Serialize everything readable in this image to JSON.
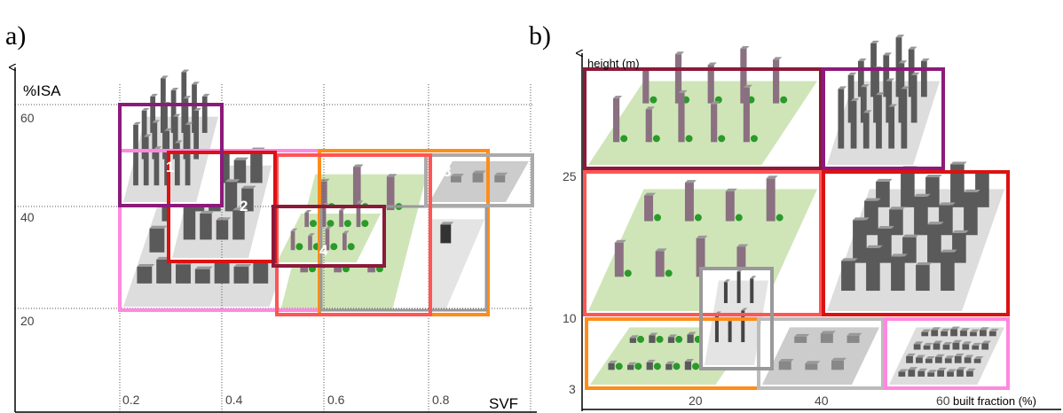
{
  "panel_a": {
    "label": "a)",
    "y_axis_title": "%ISA",
    "x_axis_title": "SVF",
    "y_ticks": [
      "60",
      "40",
      "20"
    ],
    "x_ticks": [
      "0.2",
      "0.4",
      "0.6",
      "0.8"
    ],
    "class_labels": [
      "1",
      "2",
      "4",
      "8"
    ]
  },
  "panel_b": {
    "label": "b)",
    "y_axis_title": "height (m)",
    "x_axis_title": "built fraction (%)",
    "y_ticks": [
      "25",
      "10",
      "3"
    ],
    "x_ticks": [
      "20",
      "40",
      "60"
    ]
  }
}
